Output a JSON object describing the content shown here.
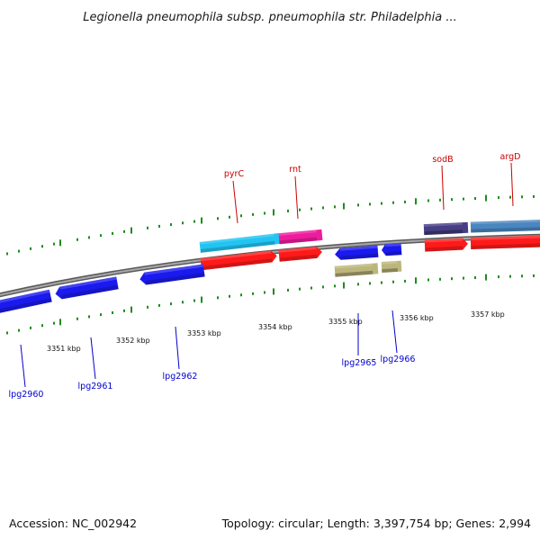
{
  "title": "Legionella pneumophila subsp. pneumophila str. Philadelphia ...",
  "footer": {
    "accession": "Accession: NC_002942",
    "stats": "Topology: circular; Length: 3,397,754 bp; Genes: 2,994"
  },
  "colors": {
    "backbone": "#888888",
    "tick": "#1f8c1f",
    "upper_label": "#cc0000",
    "lower_label": "#0000cc",
    "plus_gene": "#ff1a1a",
    "minus_gene": "#1a1aee",
    "cyan": "#22c4f2",
    "magenta": "#ee1c9c",
    "purple": "#473e86",
    "steelblue": "#4a86bf",
    "khaki": "#bdb67c"
  },
  "scale_labels": [
    "3351 kbp",
    "3352 kbp",
    "3353 kbp",
    "3354 kbp",
    "3355 kbp",
    "3356 kbp",
    "3357 kbp"
  ],
  "upper_genes": [
    {
      "label": "pyrC",
      "kind": "pyrC-feature"
    },
    {
      "label": "rnt",
      "kind": "rnt-feature"
    },
    {
      "label": "sodB",
      "kind": "sodB-feature"
    },
    {
      "label": "argD",
      "kind": "argD-feature"
    }
  ],
  "lower_genes": [
    {
      "label": "lpg2960"
    },
    {
      "label": "lpg2961"
    },
    {
      "label": "lpg2962"
    },
    {
      "label": "lpg2965"
    },
    {
      "label": "lpg2966"
    }
  ]
}
